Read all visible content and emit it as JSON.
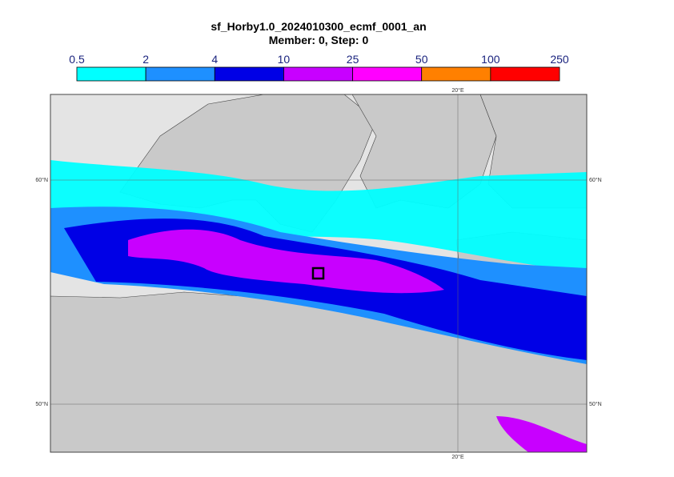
{
  "title": "sf_Horby1.0_2024010300_ecmf_0001_an",
  "subtitle": "Member: 0, Step: 0",
  "colorbar": {
    "bounds": [
      0.5,
      2,
      4,
      10,
      25,
      50,
      100,
      250
    ],
    "colors": [
      "#00ffff",
      "#1e90ff",
      "#0000e6",
      "#c800ff",
      "#ff00ff",
      "#ff8000",
      "#ff0000"
    ]
  },
  "map": {
    "lat_labels": [
      "60°N",
      "50°N"
    ],
    "lon_labels": [
      "20°E"
    ]
  }
}
